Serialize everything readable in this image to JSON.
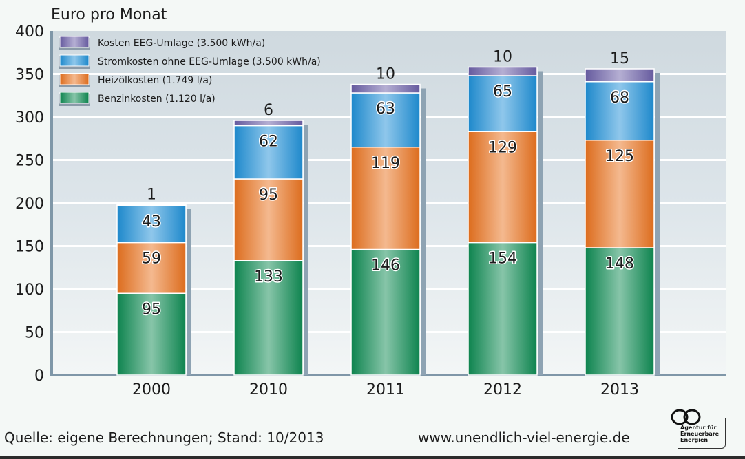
{
  "chart_data": {
    "type": "bar",
    "stacked": true,
    "title": "",
    "ylabel": "Euro pro Monat",
    "xlabel": "",
    "ylim": [
      0,
      400
    ],
    "yticks": [
      0,
      50,
      100,
      150,
      200,
      250,
      300,
      350,
      400
    ],
    "grid": true,
    "legend_position": "top-left",
    "categories": [
      "2000",
      "2010",
      "2011",
      "2012",
      "2013"
    ],
    "series": [
      {
        "name": "Benzinkosten (1.120 l/a)",
        "color": "#0e8a52",
        "values": [
          95,
          133,
          146,
          154,
          148
        ]
      },
      {
        "name": "Heizölkosten (1.749 l/a)",
        "color": "#e8721e",
        "values": [
          59,
          95,
          119,
          129,
          125
        ]
      },
      {
        "name": "Stromkosten ohne EEG-Umlage (3.500 kWh/a)",
        "color": "#1e8fd6",
        "values": [
          43,
          62,
          63,
          65,
          68
        ]
      },
      {
        "name": "Kosten EEG-Umlage (3.500 kWh/a)",
        "color": "#6a5fa6",
        "values": [
          1,
          6,
          10,
          10,
          15
        ]
      }
    ],
    "legend_order": [
      3,
      2,
      1,
      0
    ]
  },
  "footer": {
    "source": "Quelle: eigene Berechnungen; Stand: 10/2013",
    "url": "www.unendlich-viel-energie.de",
    "logo_lines": [
      "Agentur für",
      "Erneuerbare",
      "Energien"
    ]
  }
}
